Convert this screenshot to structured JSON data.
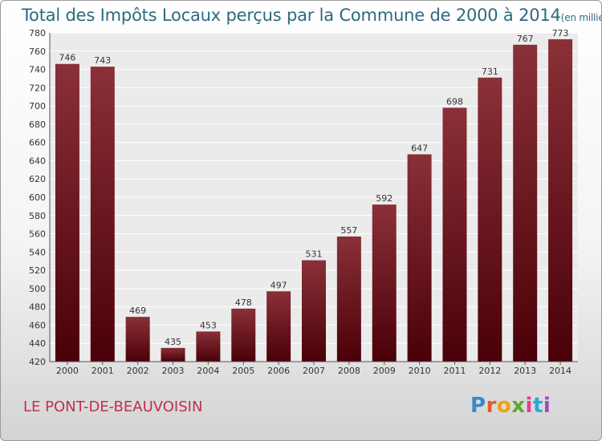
{
  "title": "Total des Impôts Locaux perçus par la Commune de 2000 à 2014",
  "unit": "(en milliers d'€)",
  "commune": "LE PONT-DE-BEAUVOISIN",
  "logo": {
    "text": "Proxiti",
    "colors": [
      "#3a88c8",
      "#e85a2a",
      "#f0a010",
      "#5aa830",
      "#e83e8c",
      "#28a8d8",
      "#9c4ab8"
    ]
  },
  "colors": {
    "bar_top": "#8a3038",
    "bar_bottom": "#4a0008",
    "plot_bg": "#ebebeb",
    "grid": "#ffffff"
  },
  "chart_data": {
    "type": "bar",
    "title": "Total des Impôts Locaux perçus par la Commune de 2000 à 2014",
    "xlabel": "",
    "ylabel": "",
    "categories": [
      "2000",
      "2001",
      "2002",
      "2003",
      "2004",
      "2005",
      "2006",
      "2007",
      "2008",
      "2009",
      "2010",
      "2011",
      "2012",
      "2013",
      "2014"
    ],
    "values": [
      746,
      743,
      469,
      435,
      453,
      478,
      497,
      531,
      557,
      592,
      647,
      698,
      731,
      767,
      773
    ],
    "ylim": [
      420,
      780
    ],
    "yticks": [
      420,
      440,
      460,
      480,
      500,
      520,
      540,
      560,
      580,
      600,
      620,
      640,
      660,
      680,
      700,
      720,
      740,
      760,
      780
    ],
    "grid": true
  }
}
